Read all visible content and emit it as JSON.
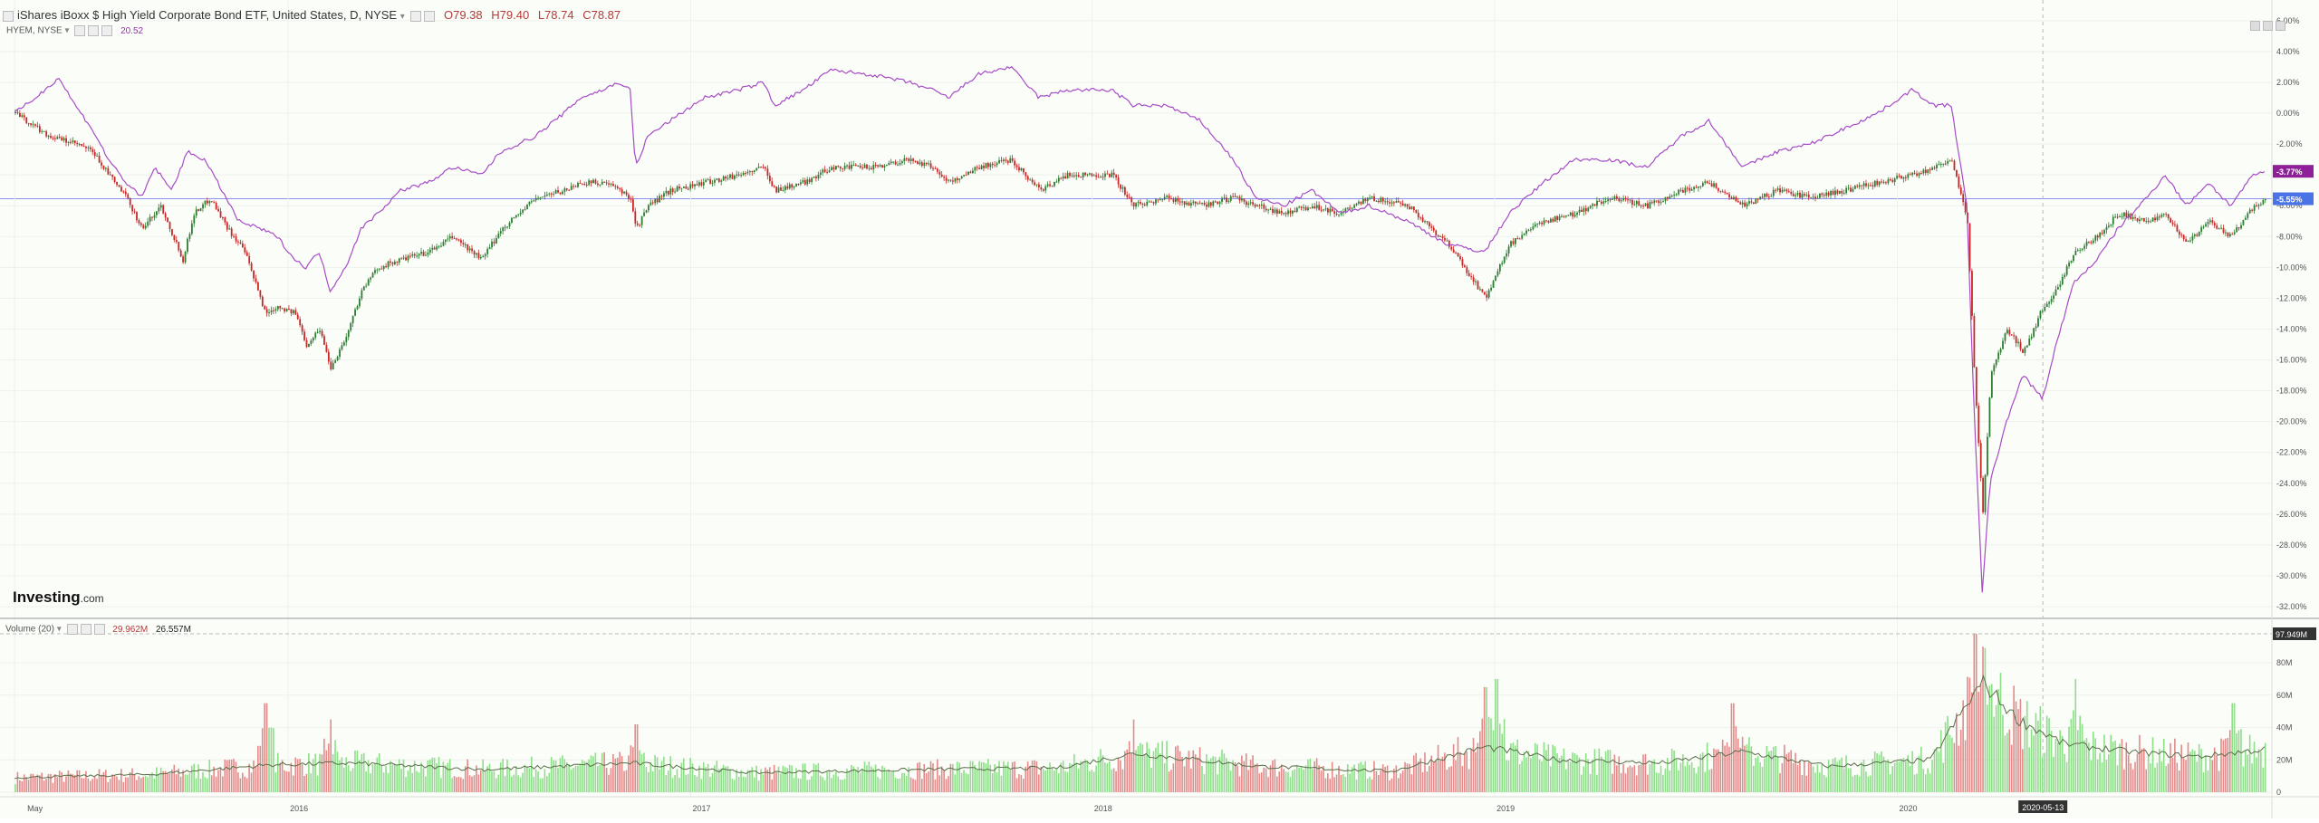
{
  "header": {
    "title": "iShares iBoxx $ High Yield Corporate Bond ETF, United States, D, NYSE",
    "ohlc": {
      "open": "O79.38",
      "high": "H79.40",
      "low": "L78.74",
      "close": "C78.87"
    },
    "overlay_name": "HYEM, NYSE",
    "overlay_value": "20.52",
    "volume_label": "Volume (20)",
    "volume_value": "29.962M",
    "volume_ma_value": "26.557M"
  },
  "logo": {
    "main": "Investing",
    "suffix": ".com"
  },
  "colors": {
    "up": "#2e7d32",
    "down": "#c62828",
    "overlay": "#a64cc6",
    "vol_up": "#8ede8a",
    "vol_down": "#e38a8a",
    "ma": "#5a6e4a",
    "baseline": "#8a8ff0",
    "badge_overlay": "#8e1f99",
    "badge_main": "#4a73e8"
  },
  "chart_data": [
    {
      "type": "candlestick+line",
      "y_unit": "percent change",
      "ylim": [
        -32,
        6
      ],
      "y_ticks": [
        "6.00%",
        "4.00%",
        "2.00%",
        "0.00%",
        "-2.00%",
        "-4.00%",
        "-6.00%",
        "-8.00%",
        "-10.00%",
        "-12.00%",
        "-14.00%",
        "-16.00%",
        "-18.00%",
        "-20.00%",
        "-22.00%",
        "-24.00%",
        "-26.00%",
        "-28.00%",
        "-30.00%",
        "-32.00%"
      ],
      "x_ticks": [
        "May",
        "2016",
        "2017",
        "2018",
        "2019",
        "2020"
      ],
      "crosshair_date": "2020-05-13",
      "last_values": {
        "HYEM": "-3.77%",
        "HYG": "-5.55%"
      },
      "series": [
        {
          "name": "HYEM, NYSE",
          "kind": "line",
          "points": [
            [
              "2015-05-01",
              0.0
            ],
            [
              "2015-05-20",
              1.0
            ],
            [
              "2015-06-10",
              2.3
            ],
            [
              "2015-06-25",
              0.5
            ],
            [
              "2015-07-10",
              -1.0
            ],
            [
              "2015-07-25",
              -3.0
            ],
            [
              "2015-08-10",
              -4.5
            ],
            [
              "2015-08-24",
              -5.5
            ],
            [
              "2015-09-05",
              -3.5
            ],
            [
              "2015-09-20",
              -5.0
            ],
            [
              "2015-10-05",
              -2.5
            ],
            [
              "2015-10-20",
              -3.0
            ],
            [
              "2015-11-05",
              -5.0
            ],
            [
              "2015-11-20",
              -7.0
            ],
            [
              "2015-12-10",
              -7.5
            ],
            [
              "2015-12-25",
              -8.0
            ],
            [
              "2016-01-10",
              -9.5
            ],
            [
              "2016-01-20",
              -10.0
            ],
            [
              "2016-02-01",
              -9.0
            ],
            [
              "2016-02-11",
              -11.5
            ],
            [
              "2016-02-25",
              -10.0
            ],
            [
              "2016-03-10",
              -7.5
            ],
            [
              "2016-03-25",
              -6.5
            ],
            [
              "2016-04-15",
              -5.0
            ],
            [
              "2016-05-10",
              -4.5
            ],
            [
              "2016-06-01",
              -3.5
            ],
            [
              "2016-06-27",
              -4.0
            ],
            [
              "2016-07-15",
              -2.5
            ],
            [
              "2016-08-15",
              -1.5
            ],
            [
              "2016-09-10",
              0.0
            ],
            [
              "2016-09-25",
              1.0
            ],
            [
              "2016-10-15",
              1.5
            ],
            [
              "2016-10-30",
              2.0
            ],
            [
              "2016-11-09",
              1.5
            ],
            [
              "2016-11-14",
              -3.5
            ],
            [
              "2016-11-25",
              -1.5
            ],
            [
              "2016-12-15",
              -0.5
            ],
            [
              "2017-01-15",
              1.0
            ],
            [
              "2017-02-15",
              1.5
            ],
            [
              "2017-03-10",
              2.0
            ],
            [
              "2017-03-20",
              0.5
            ],
            [
              "2017-04-15",
              1.5
            ],
            [
              "2017-05-10",
              2.8
            ],
            [
              "2017-06-15",
              2.5
            ],
            [
              "2017-07-20",
              2.0
            ],
            [
              "2017-08-10",
              1.5
            ],
            [
              "2017-08-25",
              1.0
            ],
            [
              "2017-09-20",
              2.5
            ],
            [
              "2017-10-20",
              3.0
            ],
            [
              "2017-11-15",
              1.0
            ],
            [
              "2017-12-10",
              1.5
            ],
            [
              "2018-01-20",
              1.5
            ],
            [
              "2018-02-08",
              0.5
            ],
            [
              "2018-03-10",
              0.5
            ],
            [
              "2018-04-10",
              -0.5
            ],
            [
              "2018-05-10",
              -3.0
            ],
            [
              "2018-05-30",
              -5.5
            ],
            [
              "2018-06-25",
              -6.0
            ],
            [
              "2018-07-20",
              -5.0
            ],
            [
              "2018-08-15",
              -6.5
            ],
            [
              "2018-09-10",
              -6.0
            ],
            [
              "2018-10-15",
              -7.0
            ],
            [
              "2018-11-20",
              -8.5
            ],
            [
              "2018-12-24",
              -9.0
            ],
            [
              "2019-01-15",
              -6.5
            ],
            [
              "2019-02-15",
              -4.5
            ],
            [
              "2019-03-15",
              -3.0
            ],
            [
              "2019-04-15",
              -3.0
            ],
            [
              "2019-05-20",
              -3.5
            ],
            [
              "2019-06-20",
              -1.5
            ],
            [
              "2019-07-15",
              -0.5
            ],
            [
              "2019-08-15",
              -3.5
            ],
            [
              "2019-09-15",
              -2.5
            ],
            [
              "2019-10-15",
              -2.0
            ],
            [
              "2019-11-15",
              -1.0
            ],
            [
              "2019-12-15",
              0.0
            ],
            [
              "2020-01-15",
              1.5
            ],
            [
              "2020-02-05",
              0.5
            ],
            [
              "2020-02-20",
              0.5
            ],
            [
              "2020-03-05",
              -6.0
            ],
            [
              "2020-03-12",
              -20.0
            ],
            [
              "2020-03-19",
              -31.0
            ],
            [
              "2020-03-26",
              -24.0
            ],
            [
              "2020-04-10",
              -20.0
            ],
            [
              "2020-04-25",
              -17.0
            ],
            [
              "2020-05-13",
              -18.5
            ],
            [
              "2020-05-25",
              -15.0
            ],
            [
              "2020-06-10",
              -11.0
            ],
            [
              "2020-07-01",
              -9.5
            ],
            [
              "2020-07-20",
              -7.5
            ],
            [
              "2020-08-15",
              -5.5
            ],
            [
              "2020-09-01",
              -4.0
            ],
            [
              "2020-09-20",
              -6.0
            ],
            [
              "2020-10-10",
              -4.5
            ],
            [
              "2020-10-30",
              -6.0
            ],
            [
              "2020-11-20",
              -4.0
            ],
            [
              "2020-12-01",
              -3.77
            ]
          ]
        },
        {
          "name": "HYG, NYSE",
          "kind": "candlestick",
          "points": [
            [
              "2015-05-01",
              0.0
            ],
            [
              "2015-06-01",
              -1.5
            ],
            [
              "2015-06-25",
              -2.0
            ],
            [
              "2015-07-10",
              -2.5
            ],
            [
              "2015-07-25",
              -4.0
            ],
            [
              "2015-08-10",
              -5.5
            ],
            [
              "2015-08-24",
              -7.5
            ],
            [
              "2015-09-10",
              -6.0
            ],
            [
              "2015-09-30",
              -9.5
            ],
            [
              "2015-10-10",
              -6.5
            ],
            [
              "2015-10-25",
              -5.5
            ],
            [
              "2015-11-10",
              -7.5
            ],
            [
              "2015-11-25",
              -9.0
            ],
            [
              "2015-12-14",
              -13.0
            ],
            [
              "2015-12-25",
              -12.5
            ],
            [
              "2016-01-10",
              -13.0
            ],
            [
              "2016-01-20",
              -15.0
            ],
            [
              "2016-02-01",
              -14.0
            ],
            [
              "2016-02-11",
              -16.5
            ],
            [
              "2016-02-25",
              -14.5
            ],
            [
              "2016-03-10",
              -11.5
            ],
            [
              "2016-03-25",
              -10.0
            ],
            [
              "2016-04-15",
              -9.5
            ],
            [
              "2016-05-10",
              -9.0
            ],
            [
              "2016-06-01",
              -8.0
            ],
            [
              "2016-06-27",
              -9.5
            ],
            [
              "2016-07-15",
              -7.5
            ],
            [
              "2016-08-15",
              -5.5
            ],
            [
              "2016-09-10",
              -5.0
            ],
            [
              "2016-09-25",
              -4.5
            ],
            [
              "2016-10-15",
              -4.5
            ],
            [
              "2016-10-30",
              -5.0
            ],
            [
              "2016-11-09",
              -5.5
            ],
            [
              "2016-11-14",
              -7.5
            ],
            [
              "2016-11-25",
              -6.0
            ],
            [
              "2016-12-15",
              -5.0
            ],
            [
              "2017-01-15",
              -4.5
            ],
            [
              "2017-02-15",
              -4.0
            ],
            [
              "2017-03-10",
              -3.5
            ],
            [
              "2017-03-20",
              -5.0
            ],
            [
              "2017-04-15",
              -4.5
            ],
            [
              "2017-05-10",
              -3.5
            ],
            [
              "2017-06-15",
              -3.5
            ],
            [
              "2017-07-20",
              -3.0
            ],
            [
              "2017-08-10",
              -3.5
            ],
            [
              "2017-08-25",
              -4.5
            ],
            [
              "2017-09-20",
              -3.5
            ],
            [
              "2017-10-20",
              -3.0
            ],
            [
              "2017-11-15",
              -5.0
            ],
            [
              "2017-12-10",
              -4.0
            ],
            [
              "2018-01-20",
              -4.0
            ],
            [
              "2018-02-08",
              -6.0
            ],
            [
              "2018-03-10",
              -5.5
            ],
            [
              "2018-04-10",
              -6.0
            ],
            [
              "2018-05-10",
              -5.5
            ],
            [
              "2018-05-30",
              -6.0
            ],
            [
              "2018-06-25",
              -6.5
            ],
            [
              "2018-07-20",
              -6.0
            ],
            [
              "2018-08-15",
              -6.5
            ],
            [
              "2018-09-10",
              -5.5
            ],
            [
              "2018-10-15",
              -6.0
            ],
            [
              "2018-11-20",
              -8.5
            ],
            [
              "2018-12-24",
              -12.0
            ],
            [
              "2019-01-15",
              -8.5
            ],
            [
              "2019-02-15",
              -7.0
            ],
            [
              "2019-03-15",
              -6.5
            ],
            [
              "2019-04-15",
              -5.5
            ],
            [
              "2019-05-20",
              -6.0
            ],
            [
              "2019-06-20",
              -5.0
            ],
            [
              "2019-07-15",
              -4.5
            ],
            [
              "2019-08-15",
              -6.0
            ],
            [
              "2019-09-15",
              -5.0
            ],
            [
              "2019-10-15",
              -5.5
            ],
            [
              "2019-11-15",
              -5.0
            ],
            [
              "2019-12-15",
              -4.5
            ],
            [
              "2020-01-15",
              -4.0
            ],
            [
              "2020-02-05",
              -3.5
            ],
            [
              "2020-02-20",
              -3.0
            ],
            [
              "2020-03-05",
              -7.0
            ],
            [
              "2020-03-12",
              -18.0
            ],
            [
              "2020-03-19",
              -26.0
            ],
            [
              "2020-03-26",
              -17.0
            ],
            [
              "2020-04-10",
              -14.0
            ],
            [
              "2020-04-25",
              -15.5
            ],
            [
              "2020-05-13",
              -12.5
            ],
            [
              "2020-05-25",
              -11.5
            ],
            [
              "2020-06-10",
              -9.0
            ],
            [
              "2020-07-01",
              -8.0
            ],
            [
              "2020-07-20",
              -6.5
            ],
            [
              "2020-08-15",
              -7.0
            ],
            [
              "2020-09-01",
              -6.5
            ],
            [
              "2020-09-20",
              -8.5
            ],
            [
              "2020-10-10",
              -7.0
            ],
            [
              "2020-10-30",
              -8.0
            ],
            [
              "2020-11-20",
              -6.0
            ],
            [
              "2020-12-01",
              -5.55
            ]
          ]
        }
      ]
    },
    {
      "type": "bar",
      "title": "Volume (20)",
      "y_ticks": [
        "0",
        "20M",
        "40M",
        "60M",
        "80M"
      ],
      "ylim": [
        0,
        97.949
      ],
      "y_unit": "M",
      "last_value_badge": "97.949M",
      "ma_points": [
        [
          "2015-05-01",
          9
        ],
        [
          "2015-09-01",
          11
        ],
        [
          "2015-12-20",
          17
        ],
        [
          "2016-03-01",
          18
        ],
        [
          "2016-07-01",
          14
        ],
        [
          "2016-11-10",
          18
        ],
        [
          "2017-03-01",
          12
        ],
        [
          "2017-08-01",
          14
        ],
        [
          "2017-12-01",
          15
        ],
        [
          "2018-02-10",
          24
        ],
        [
          "2018-06-01",
          16
        ],
        [
          "2018-10-01",
          13
        ],
        [
          "2018-12-24",
          28
        ],
        [
          "2019-03-01",
          20
        ],
        [
          "2019-06-01",
          18
        ],
        [
          "2019-08-15",
          25
        ],
        [
          "2019-11-01",
          16
        ],
        [
          "2020-02-01",
          20
        ],
        [
          "2020-03-19",
          68
        ],
        [
          "2020-04-20",
          45
        ],
        [
          "2020-06-01",
          30
        ],
        [
          "2020-08-01",
          25
        ],
        [
          "2020-10-01",
          22
        ],
        [
          "2020-12-01",
          26.557
        ]
      ],
      "peaks": [
        [
          "2015-12-14",
          55
        ],
        [
          "2016-02-11",
          45
        ],
        [
          "2016-11-14",
          42
        ],
        [
          "2018-02-08",
          45
        ],
        [
          "2018-12-24",
          65
        ],
        [
          "2019-01-03",
          70
        ],
        [
          "2019-08-05",
          55
        ],
        [
          "2020-03-12",
          97.949
        ],
        [
          "2020-03-19",
          90
        ],
        [
          "2020-06-11",
          70
        ],
        [
          "2020-11-01",
          55
        ]
      ]
    }
  ]
}
